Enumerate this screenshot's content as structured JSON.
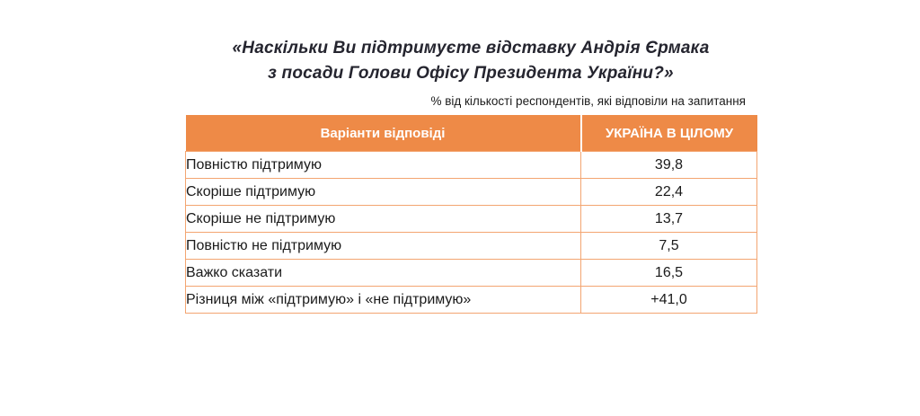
{
  "title": {
    "line1": "«Наскільки Ви підтримуєте відставку Андрія Єрмака",
    "line2": "з посади Голови Офісу Президента України?»"
  },
  "subtitle": "% від кількості респондентів, які відповіли на запитання",
  "table": {
    "headers": [
      "Варіанти відповіді",
      "УКРАЇНА В ЦІЛОМУ"
    ],
    "rows": [
      {
        "label": "Повністю підтримую",
        "value": "39,8"
      },
      {
        "label": "Скоріше підтримую",
        "value": "22,4"
      },
      {
        "label": "Скоріше не підтримую",
        "value": "13,7"
      },
      {
        "label": "Повністю не підтримую",
        "value": "7,5"
      },
      {
        "label": "Важко сказати",
        "value": "16,5"
      },
      {
        "label": "Різниця між «підтримую» і «не підтримую»",
        "value": "+41,0"
      }
    ]
  },
  "colors": {
    "header_bg": "#ee8a47",
    "cell_border": "#f3a571",
    "header_text": "#ffffff",
    "title_text": "#25252f"
  },
  "chart_data": {
    "type": "table",
    "title": "«Наскільки Ви підтримуєте відставку Андрія Єрмака з посади Голови Офісу Президента України?»",
    "subtitle": "% від кількості респондентів, які відповіли на запитання",
    "columns": [
      "Варіанти відповіді",
      "УКРАЇНА В ЦІЛОМУ"
    ],
    "categories": [
      "Повністю підтримую",
      "Скоріше підтримую",
      "Скоріше не підтримую",
      "Повністю не підтримую",
      "Важко сказати",
      "Різниця між «підтримую» і «не підтримую»"
    ],
    "values_displayed": [
      "39,8",
      "22,4",
      "13,7",
      "7,5",
      "16,5",
      "+41,0"
    ],
    "values_numeric": [
      39.8,
      22.4,
      13.7,
      7.5,
      16.5,
      41.0
    ]
  }
}
